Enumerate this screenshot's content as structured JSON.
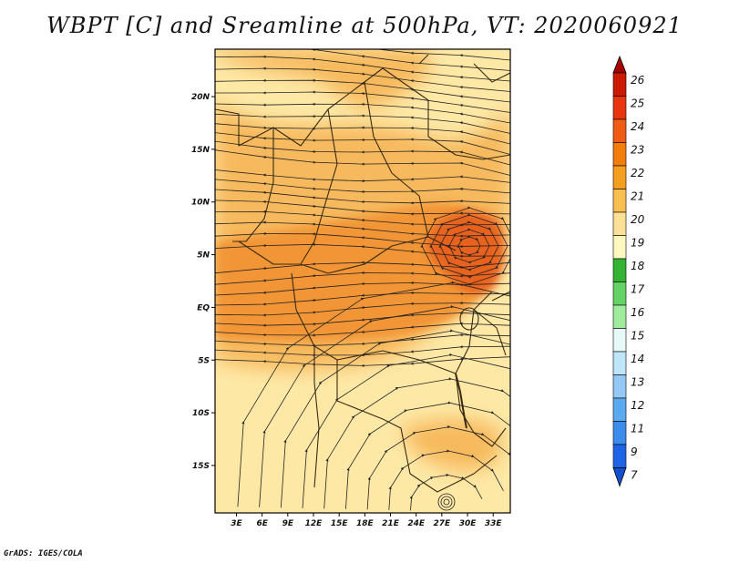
{
  "title": "WBPT [C] and Sreamline at 500hPa, VT: 2020060921",
  "credit": "GrADS: IGES/COLA",
  "map": {
    "lat_labels": [
      "20N",
      "15N",
      "10N",
      "5N",
      "EQ",
      "5S",
      "10S",
      "15S"
    ],
    "lat_values": [
      20,
      15,
      10,
      5,
      0,
      -5,
      -10,
      -15
    ],
    "lon_labels": [
      "3E",
      "6E",
      "9E",
      "12E",
      "15E",
      "18E",
      "21E",
      "24E",
      "27E",
      "30E",
      "33E"
    ],
    "lon_values": [
      3,
      6,
      9,
      12,
      15,
      18,
      21,
      24,
      27,
      30,
      33
    ],
    "lat_range": [
      -19.5,
      24.5
    ],
    "lon_range": [
      0.5,
      35.0
    ]
  },
  "colorbar": {
    "labels": [
      "26",
      "25",
      "24",
      "23",
      "22",
      "21",
      "20",
      "19",
      "18",
      "17",
      "16",
      "15",
      "14",
      "13",
      "12",
      "11",
      "9",
      "7"
    ],
    "colors": [
      "#a50000",
      "#cc1a00",
      "#e83510",
      "#f05c14",
      "#f27c0c",
      "#f59d1e",
      "#f8c050",
      "#fbe196",
      "#fff6c0",
      "#32b432",
      "#64d264",
      "#a0eba0",
      "#e6f9f9",
      "#bfe5f8",
      "#96c8f5",
      "#5aaaf0",
      "#3c8cec",
      "#1e64e6",
      "#1450cc"
    ]
  },
  "colors": {
    "base_fill": "#fde8a6",
    "warm_fill": "#f7b75a",
    "warmer_fill": "#f29436",
    "hot_fill": "#e8611e",
    "streamline": "#222222"
  }
}
